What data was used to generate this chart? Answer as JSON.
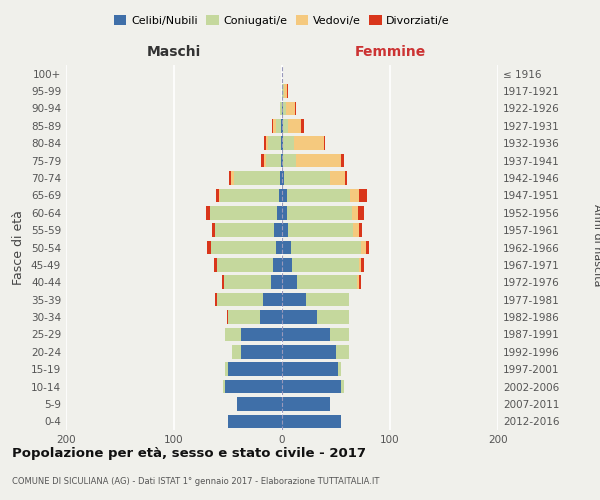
{
  "age_groups": [
    "0-4",
    "5-9",
    "10-14",
    "15-19",
    "20-24",
    "25-29",
    "30-34",
    "35-39",
    "40-44",
    "45-49",
    "50-54",
    "55-59",
    "60-64",
    "65-69",
    "70-74",
    "75-79",
    "80-84",
    "85-89",
    "90-94",
    "95-99",
    "100+"
  ],
  "birth_years": [
    "2012-2016",
    "2007-2011",
    "2002-2006",
    "1997-2001",
    "1992-1996",
    "1987-1991",
    "1982-1986",
    "1977-1981",
    "1972-1976",
    "1967-1971",
    "1962-1966",
    "1957-1961",
    "1952-1956",
    "1947-1951",
    "1942-1946",
    "1937-1941",
    "1932-1936",
    "1927-1931",
    "1922-1926",
    "1917-1921",
    "≤ 1916"
  ],
  "male_celibe": [
    50,
    42,
    53,
    50,
    38,
    38,
    20,
    18,
    10,
    8,
    6,
    7,
    5,
    3,
    2,
    1,
    1,
    1,
    0,
    0,
    0
  ],
  "male_coniugato": [
    0,
    0,
    2,
    3,
    8,
    15,
    30,
    42,
    44,
    52,
    60,
    55,
    62,
    54,
    42,
    14,
    12,
    5,
    2,
    0,
    0
  ],
  "male_vedovo": [
    0,
    0,
    0,
    0,
    0,
    0,
    0,
    0,
    0,
    0,
    0,
    0,
    0,
    1,
    3,
    2,
    2,
    2,
    0,
    0,
    0
  ],
  "male_divorziato": [
    0,
    0,
    0,
    0,
    0,
    0,
    1,
    2,
    2,
    3,
    3,
    3,
    3,
    3,
    2,
    2,
    2,
    1,
    0,
    0,
    0
  ],
  "fem_nubile": [
    55,
    44,
    55,
    52,
    50,
    44,
    32,
    22,
    14,
    9,
    8,
    6,
    5,
    5,
    2,
    1,
    1,
    1,
    1,
    0,
    0
  ],
  "fem_coniugata": [
    0,
    0,
    2,
    3,
    12,
    18,
    30,
    40,
    55,
    62,
    65,
    60,
    60,
    58,
    42,
    12,
    10,
    5,
    3,
    2,
    0
  ],
  "fem_vedova": [
    0,
    0,
    0,
    0,
    0,
    0,
    0,
    0,
    2,
    2,
    5,
    5,
    5,
    8,
    14,
    42,
    28,
    12,
    8,
    3,
    0
  ],
  "fem_divorziata": [
    0,
    0,
    0,
    0,
    0,
    0,
    0,
    0,
    2,
    3,
    3,
    3,
    6,
    8,
    2,
    2,
    1,
    2,
    1,
    1,
    0
  ],
  "colors": {
    "celibe": "#3f6fa8",
    "coniugato": "#c5d89d",
    "vedovo": "#f5c97e",
    "divorziato": "#d9361b"
  },
  "xlim": 200,
  "title": "Popolazione per età, sesso e stato civile - 2017",
  "subtitle": "COMUNE DI SICULIANA (AG) - Dati ISTAT 1° gennaio 2017 - Elaborazione TUTTAITALIA.IT",
  "ylabel_left": "Fasce di età",
  "ylabel_right": "Anni di nascita",
  "legend_labels": [
    "Celibi/Nubili",
    "Coniugati/e",
    "Vedovi/e",
    "Divorziati/e"
  ],
  "bg_color": "#f0f0eb",
  "maschi_label": "Maschi",
  "femmine_label": "Femmine",
  "maschi_color": "#333333",
  "femmine_color": "#cc3333"
}
